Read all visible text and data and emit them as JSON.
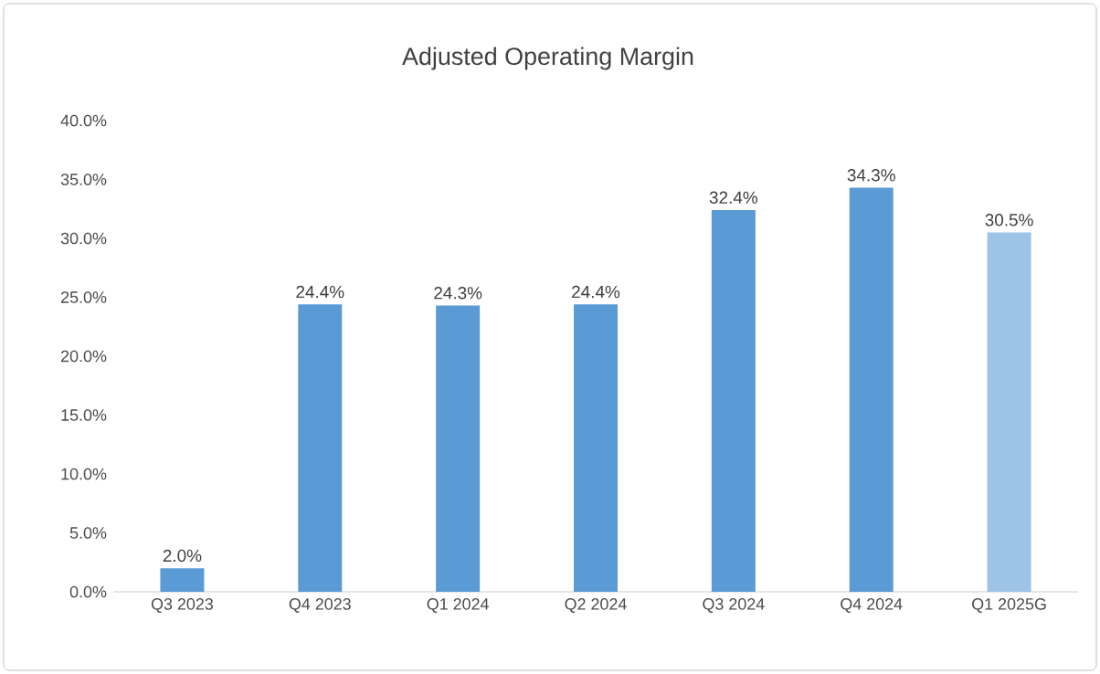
{
  "chart_data": {
    "type": "bar",
    "title": "Adjusted Operating Margin",
    "categories": [
      "Q3 2023",
      "Q4 2023",
      "Q1 2024",
      "Q2 2024",
      "Q3 2024",
      "Q4 2024",
      "Q1 2025G"
    ],
    "values": [
      2.0,
      24.4,
      24.3,
      24.4,
      32.4,
      34.3,
      30.5
    ],
    "value_labels": [
      "2.0%",
      "24.4%",
      "24.3%",
      "24.4%",
      "32.4%",
      "34.3%",
      "30.5%"
    ],
    "colors": [
      "#5b9bd5",
      "#5b9bd5",
      "#5b9bd5",
      "#5b9bd5",
      "#5b9bd5",
      "#5b9bd5",
      "#9dc3e6"
    ],
    "ylim": [
      0,
      40
    ],
    "yticks": [
      {
        "value": 0,
        "label": "0.0%"
      },
      {
        "value": 5,
        "label": "5.0%"
      },
      {
        "value": 10,
        "label": "10.0%"
      },
      {
        "value": 15,
        "label": "15.0%"
      },
      {
        "value": 20,
        "label": "20.0%"
      },
      {
        "value": 25,
        "label": "25.0%"
      },
      {
        "value": 30,
        "label": "30.0%"
      },
      {
        "value": 35,
        "label": "35.0%"
      },
      {
        "value": 40,
        "label": "40.0%"
      }
    ],
    "grid": false
  }
}
